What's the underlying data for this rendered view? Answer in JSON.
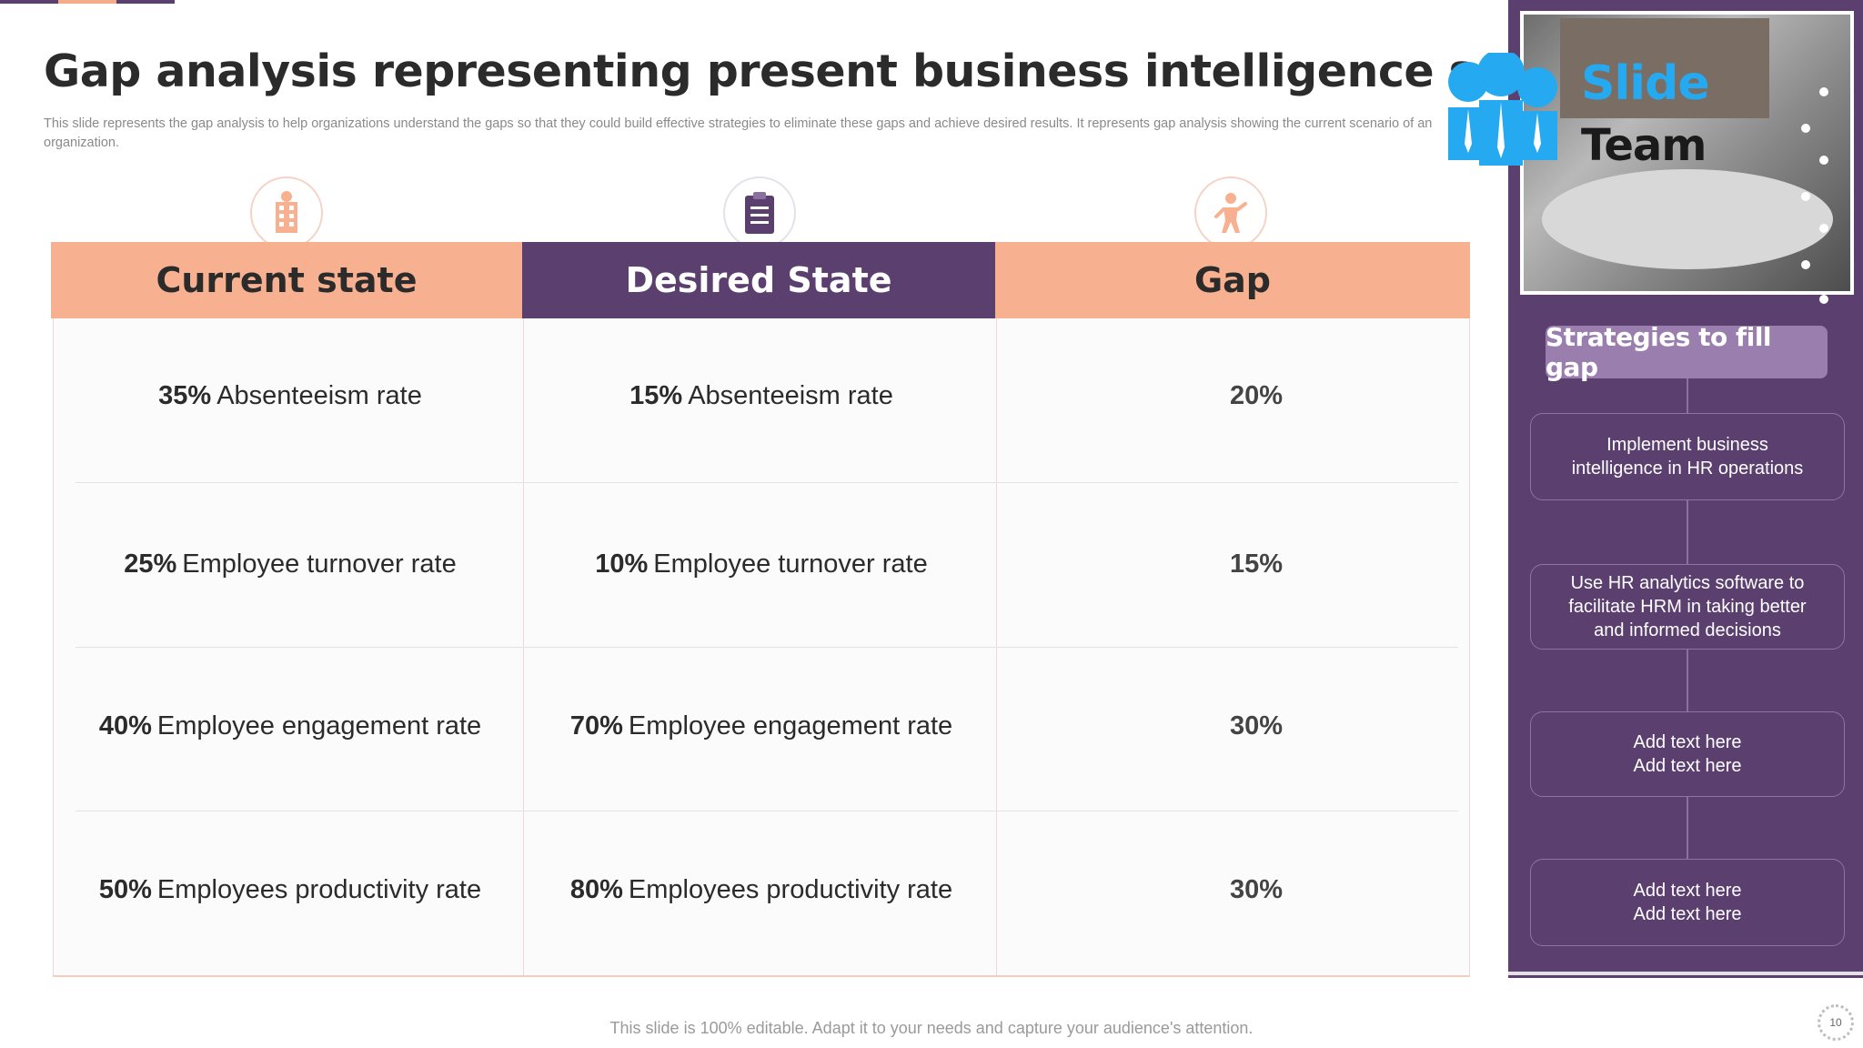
{
  "slide": {
    "title": "Gap analysis representing present business intelligence scenario",
    "subtitle": "This slide represents the gap analysis to help organizations understand the gaps so that they could build effective strategies to eliminate these gaps and achieve desired results. It represents gap analysis showing the current scenario of an organization.",
    "footer": "This slide is 100% editable. Adapt it to your needs and capture your audience's attention.",
    "page_number": "10"
  },
  "logo": {
    "line1": "Slide",
    "line2": "Team"
  },
  "table": {
    "headers": [
      "Current state",
      "Desired State",
      "Gap"
    ],
    "header_icons": [
      "building-icon",
      "clipboard-icon",
      "person-icon"
    ],
    "rows": [
      {
        "current_value": "35%",
        "current_label": "Absenteeism rate",
        "desired_value": "15%",
        "desired_label": "Absenteeism rate",
        "gap": "20%"
      },
      {
        "current_value": "25%",
        "current_label": "Employee turnover rate",
        "desired_value": "10%",
        "desired_label": "Employee turnover rate",
        "gap": "15%"
      },
      {
        "current_value": "40%",
        "current_label": "Employee engagement rate",
        "desired_value": "70%",
        "desired_label": "Employee engagement rate",
        "gap": "30%"
      },
      {
        "current_value": "50%",
        "current_label": "Employees productivity rate",
        "desired_value": "80%",
        "desired_label": "Employees productivity rate",
        "gap": "30%"
      }
    ]
  },
  "strategies": {
    "title": "Strategies to fill gap",
    "items": [
      "Implement business\nintelligence in HR operations",
      "Use HR analytics software to\nfacilitate HRM in taking better\nand informed decisions",
      "Add text here\nAdd text here",
      "Add text here\nAdd text here"
    ]
  },
  "colors": {
    "peach": "#f8b190",
    "purple": "#5b3f6e",
    "light_purple": "#9a7fae"
  }
}
